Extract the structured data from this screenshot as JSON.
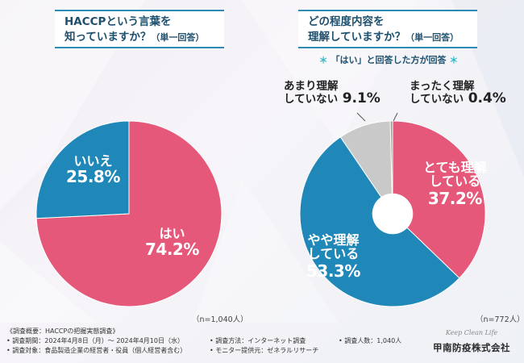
{
  "question_left": {
    "line1": "HACCPという言葉を",
    "line2": "知っていますか？",
    "suffix": "（単一回答）"
  },
  "question_right": {
    "line1": "どの程度内容を",
    "line2": "理解していますか？",
    "suffix": "（単一回答）"
  },
  "note": {
    "prefix": "＊",
    "text": "「はい」と回答した方が回答",
    "suffix": "＊"
  },
  "chart_data": [
    {
      "type": "pie",
      "n_label": "（n=1,040人）",
      "slices": [
        {
          "label": "はい",
          "value": 74.2,
          "pct_text": "74.2%",
          "color": "#e5587a"
        },
        {
          "label": "いいえ",
          "value": 25.8,
          "pct_text": "25.8%",
          "color": "#1f88b8"
        }
      ]
    },
    {
      "type": "pie",
      "donut": true,
      "n_label": "（n=772人）",
      "slices": [
        {
          "label_line1": "とても理解",
          "label_line2": "している",
          "value": 37.2,
          "pct_text": "37.2%",
          "color": "#e5587a"
        },
        {
          "label_line1": "やや理解",
          "label_line2": "している",
          "value": 53.3,
          "pct_text": "53.3%",
          "color": "#1f88b8"
        },
        {
          "label_line1": "あまり理解",
          "label_line2": "していない",
          "value": 9.1,
          "pct_text": "9.1%",
          "color": "#c9c9c9"
        },
        {
          "label_line1": "まったく理解",
          "label_line2": "していない",
          "value": 0.4,
          "pct_text": "0.4%",
          "color": "#9a9a9a"
        }
      ]
    }
  ],
  "footer": {
    "title": "《調査概要：HACCPの把握実態調査》",
    "period": "• 調査期間：2024年4月8日（月）～ 2024年4月10日（水）",
    "target": "• 調査対象：食品製造企業の経営者・役員（個人経営者含む）",
    "method": "• 調査方法：インターネット調査",
    "provider": "• モニター提供元：ゼネラルリサーチ",
    "count": "• 調査人数：1,040人"
  },
  "logo": {
    "tagline": "Keep Clean Life",
    "company": "甲南防疫株式会社"
  }
}
